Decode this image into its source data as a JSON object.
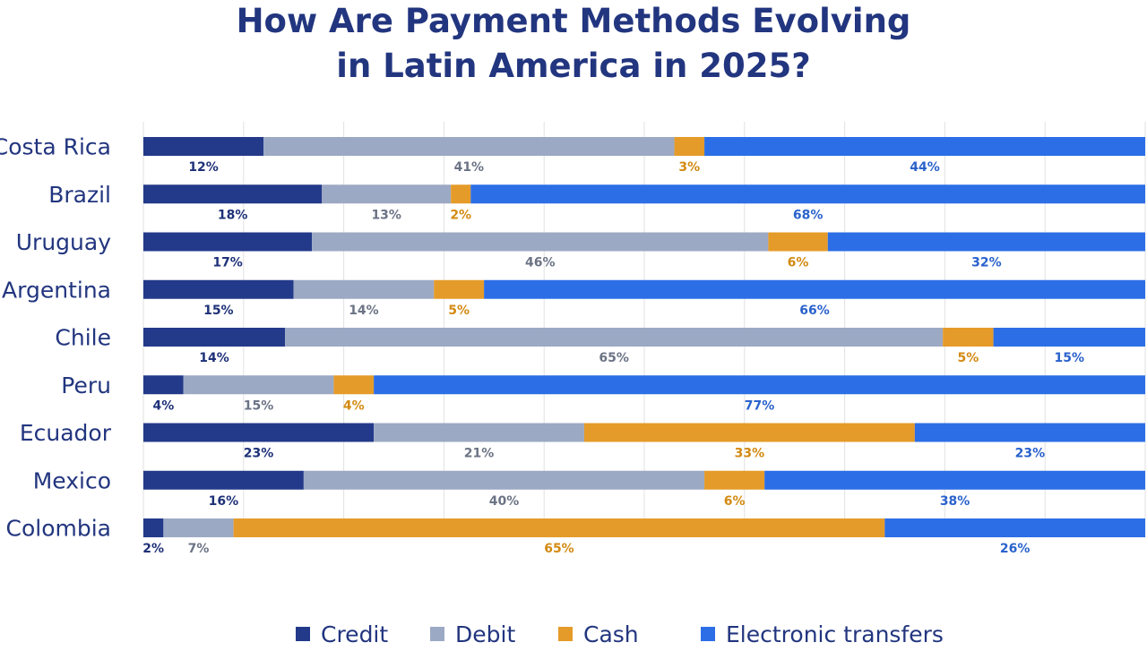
{
  "chart_data": {
    "type": "bar",
    "stacked": true,
    "orientation": "horizontal",
    "title": "How Are Payment Methods Evolving in Latin America in 2025?",
    "title_lines": [
      "How Are Payment Methods Evolving",
      "in Latin America in 2025?"
    ],
    "categories": [
      "Costa Rica",
      "Brazil",
      "Uruguay",
      "Argentina",
      "Chile",
      "Peru",
      "Ecuador",
      "Mexico",
      "Colombia"
    ],
    "series": [
      {
        "name": "Credit",
        "color": "#233a8a",
        "label_color": "#1e3178",
        "values": [
          12,
          18,
          17,
          15,
          14,
          4,
          23,
          16,
          2
        ]
      },
      {
        "name": "Debit",
        "color": "#9ca9c4",
        "label_color": "#6b7385",
        "values": [
          41,
          13,
          46,
          14,
          65,
          15,
          21,
          40,
          7
        ]
      },
      {
        "name": "Cash",
        "color": "#e59b29",
        "label_color": "#d38a12",
        "values": [
          3,
          2,
          6,
          5,
          5,
          4,
          33,
          6,
          65
        ]
      },
      {
        "name": "Electronic transfers",
        "color": "#2c6ee6",
        "label_color": "#2a62cc",
        "values": [
          44,
          68,
          32,
          66,
          15,
          77,
          23,
          38,
          26
        ]
      }
    ],
    "value_suffix": "%",
    "grid": true,
    "legend_position": "bottom"
  }
}
